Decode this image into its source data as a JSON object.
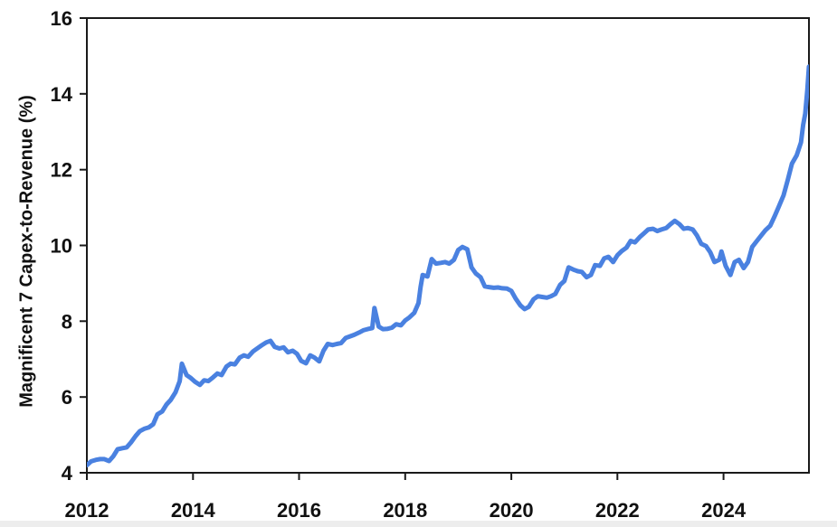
{
  "page": {
    "background": "#ffffff",
    "bottom_strip_color": "#ededed"
  },
  "chart_data": {
    "type": "line",
    "title": "",
    "xlabel": "",
    "ylabel": "Magnificent 7 Capex-to-Revenue (%)",
    "xlim": [
      2012,
      2025.61
    ],
    "ylim": [
      4,
      16
    ],
    "x_ticks": [
      2012,
      2014,
      2016,
      2018,
      2020,
      2022,
      2024
    ],
    "y_ticks": [
      4,
      6,
      8,
      10,
      12,
      14,
      16
    ],
    "grid": false,
    "legend_position": "none",
    "axis_color": "#1a1a1a",
    "series": [
      {
        "name": "Magnificent 7 Capex-to-Revenue (%)",
        "color": "#4a81e0",
        "line_width": 5,
        "x": [
          2012.0,
          2012.08,
          2012.17,
          2012.25,
          2012.33,
          2012.42,
          2012.5,
          2012.58,
          2012.67,
          2012.75,
          2012.83,
          2012.92,
          2013.0,
          2013.08,
          2013.17,
          2013.25,
          2013.33,
          2013.42,
          2013.5,
          2013.58,
          2013.67,
          2013.75,
          2013.79,
          2013.88,
          2013.96,
          2014.04,
          2014.13,
          2014.21,
          2014.29,
          2014.38,
          2014.46,
          2014.54,
          2014.63,
          2014.71,
          2014.79,
          2014.88,
          2014.96,
          2015.04,
          2015.13,
          2015.21,
          2015.29,
          2015.38,
          2015.46,
          2015.54,
          2015.63,
          2015.71,
          2015.79,
          2015.88,
          2015.96,
          2016.04,
          2016.13,
          2016.21,
          2016.29,
          2016.38,
          2016.46,
          2016.54,
          2016.63,
          2016.71,
          2016.79,
          2016.88,
          2016.96,
          2017.04,
          2017.13,
          2017.21,
          2017.29,
          2017.38,
          2017.42,
          2017.5,
          2017.58,
          2017.67,
          2017.75,
          2017.83,
          2017.92,
          2018.0,
          2018.08,
          2018.17,
          2018.25,
          2018.29,
          2018.33,
          2018.42,
          2018.5,
          2018.58,
          2018.67,
          2018.75,
          2018.83,
          2018.92,
          2019.0,
          2019.08,
          2019.17,
          2019.25,
          2019.33,
          2019.42,
          2019.5,
          2019.58,
          2019.67,
          2019.75,
          2019.83,
          2019.92,
          2020.0,
          2020.08,
          2020.17,
          2020.25,
          2020.33,
          2020.42,
          2020.5,
          2020.58,
          2020.67,
          2020.75,
          2020.83,
          2020.92,
          2021.0,
          2021.08,
          2021.17,
          2021.25,
          2021.33,
          2021.42,
          2021.5,
          2021.58,
          2021.67,
          2021.75,
          2021.83,
          2021.92,
          2022.0,
          2022.08,
          2022.17,
          2022.25,
          2022.33,
          2022.42,
          2022.5,
          2022.58,
          2022.67,
          2022.75,
          2022.83,
          2022.92,
          2023.0,
          2023.08,
          2023.17,
          2023.25,
          2023.33,
          2023.42,
          2023.5,
          2023.58,
          2023.67,
          2023.75,
          2023.83,
          2023.92,
          2023.96,
          2024.04,
          2024.13,
          2024.21,
          2024.29,
          2024.38,
          2024.46,
          2024.54,
          2024.63,
          2024.71,
          2024.79,
          2024.88,
          2024.96,
          2025.04,
          2025.13,
          2025.21,
          2025.29,
          2025.38,
          2025.46,
          2025.5,
          2025.54,
          2025.58,
          2025.61
        ],
        "values": [
          4.2,
          4.3,
          4.34,
          4.36,
          4.36,
          4.31,
          4.44,
          4.62,
          4.65,
          4.67,
          4.8,
          4.97,
          5.1,
          5.16,
          5.2,
          5.28,
          5.54,
          5.62,
          5.8,
          5.92,
          6.12,
          6.42,
          6.88,
          6.58,
          6.5,
          6.4,
          6.32,
          6.44,
          6.42,
          6.52,
          6.62,
          6.58,
          6.8,
          6.88,
          6.86,
          7.04,
          7.1,
          7.06,
          7.2,
          7.28,
          7.36,
          7.44,
          7.48,
          7.32,
          7.28,
          7.31,
          7.18,
          7.22,
          7.14,
          6.95,
          6.89,
          7.1,
          7.04,
          6.94,
          7.22,
          7.4,
          7.37,
          7.4,
          7.42,
          7.56,
          7.6,
          7.64,
          7.7,
          7.76,
          7.79,
          7.82,
          8.35,
          7.86,
          7.79,
          7.8,
          7.83,
          7.92,
          7.89,
          8.02,
          8.1,
          8.22,
          8.48,
          8.9,
          9.22,
          9.18,
          9.64,
          9.52,
          9.54,
          9.56,
          9.52,
          9.62,
          9.88,
          9.96,
          9.9,
          9.42,
          9.26,
          9.16,
          8.92,
          8.9,
          8.88,
          8.89,
          8.87,
          8.86,
          8.8,
          8.6,
          8.42,
          8.32,
          8.38,
          8.58,
          8.66,
          8.64,
          8.62,
          8.66,
          8.72,
          8.96,
          9.06,
          9.42,
          9.36,
          9.32,
          9.3,
          9.16,
          9.22,
          9.48,
          9.46,
          9.66,
          9.7,
          9.56,
          9.74,
          9.85,
          9.94,
          10.12,
          10.08,
          10.22,
          10.32,
          10.42,
          10.44,
          10.38,
          10.42,
          10.46,
          10.56,
          10.65,
          10.56,
          10.44,
          10.46,
          10.42,
          10.26,
          10.04,
          9.98,
          9.82,
          9.56,
          9.62,
          9.84,
          9.46,
          9.22,
          9.56,
          9.62,
          9.4,
          9.56,
          9.96,
          10.12,
          10.26,
          10.4,
          10.52,
          10.76,
          11.02,
          11.32,
          11.72,
          12.16,
          12.38,
          12.72,
          13.18,
          13.48,
          14.1,
          14.72
        ]
      }
    ]
  }
}
